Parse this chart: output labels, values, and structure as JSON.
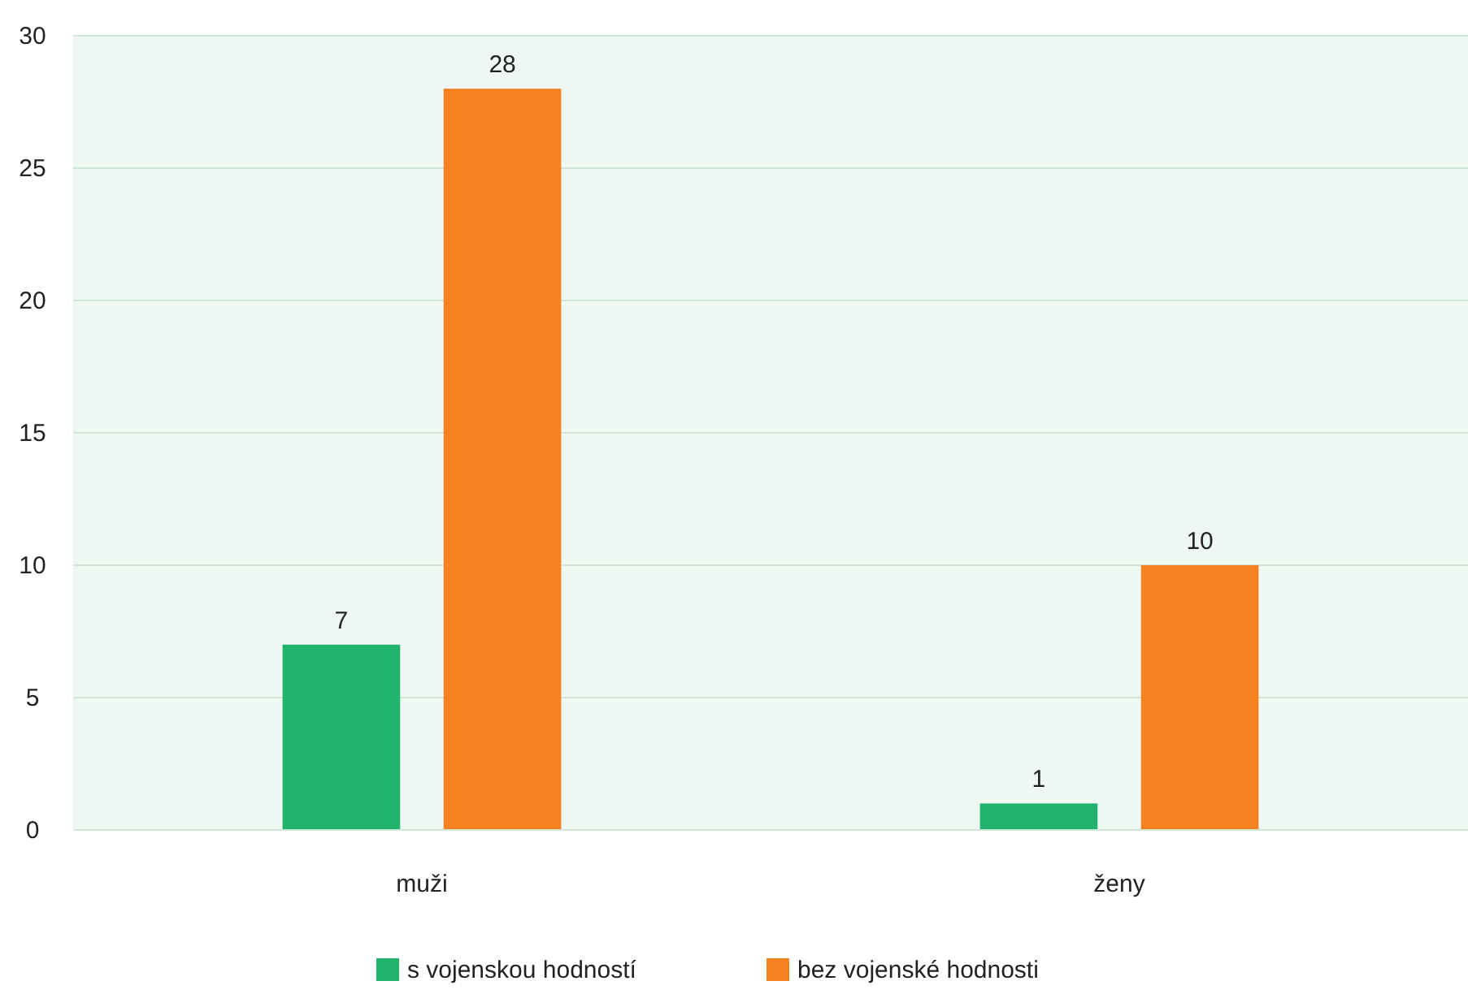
{
  "chart_data": {
    "type": "bar",
    "categories": [
      "muži",
      "ženy"
    ],
    "series": [
      {
        "name": "s vojenskou hodností",
        "color": "#21b36b",
        "values": [
          7,
          1
        ]
      },
      {
        "name": "bez vojenské hodnosti",
        "color": "#f58220",
        "values": [
          28,
          10
        ]
      }
    ],
    "ylim": [
      0,
      30
    ],
    "yticks": [
      0,
      5,
      10,
      15,
      20,
      25,
      30
    ],
    "grid": "y",
    "legend": "bottom",
    "data_labels": true
  }
}
